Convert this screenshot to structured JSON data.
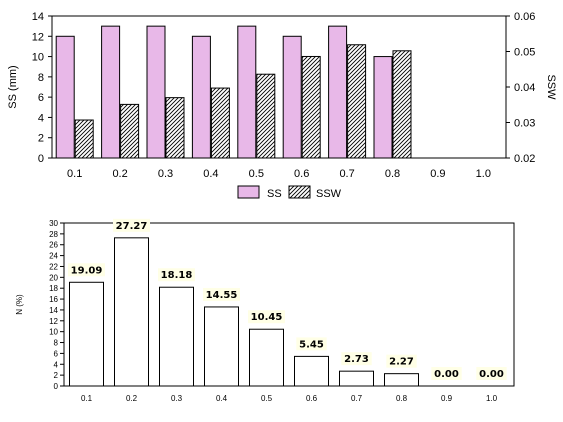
{
  "chart_data": [
    {
      "type": "bar",
      "categories": [
        "0.1",
        "0.2",
        "0.3",
        "0.4",
        "0.5",
        "0.6",
        "0.7",
        "0.8",
        "0.9",
        "1.0"
      ],
      "series": [
        {
          "name": "SS",
          "axis": "left",
          "color": "#e8b8e8",
          "values": [
            12,
            13,
            13,
            12,
            13,
            12,
            13,
            10,
            null,
            null
          ]
        },
        {
          "name": "SSW",
          "axis": "right",
          "pattern": "diagonal-hatch",
          "values": [
            0.0307,
            0.0351,
            0.037,
            0.0397,
            0.0436,
            0.0486,
            0.0519,
            0.0502,
            null,
            null
          ]
        }
      ],
      "ylabel": "SS (mm)",
      "ylim": [
        0,
        14
      ],
      "yticks": [
        "0",
        "2",
        "4",
        "6",
        "8",
        "10",
        "12",
        "14"
      ],
      "y2label": "SSW",
      "y2lim": [
        0.02,
        0.06
      ],
      "y2ticks": [
        "0.02",
        "0.03",
        "0.04",
        "0.05",
        "0.06"
      ],
      "legend": [
        "SS",
        "SSW"
      ],
      "legend_position": "bottom",
      "grid": false
    },
    {
      "type": "bar",
      "categories": [
        "0.1",
        "0.2",
        "0.3",
        "0.4",
        "0.5",
        "0.6",
        "0.7",
        "0.8",
        "0.9",
        "1.0"
      ],
      "values": [
        19.09,
        27.27,
        18.18,
        14.55,
        10.45,
        5.45,
        2.73,
        2.27,
        0.0,
        0.0
      ],
      "data_labels": [
        "19.09",
        "27.27",
        "18.18",
        "14.55",
        "10.45",
        "5.45",
        "2.73",
        "2.27",
        "0.00",
        "0.00"
      ],
      "ylabel": "N (%)",
      "ylim": [
        0,
        30
      ],
      "yticks": [
        "0",
        "2",
        "4",
        "6",
        "8",
        "10",
        "12",
        "14",
        "16",
        "18",
        "20",
        "22",
        "24",
        "26",
        "28",
        "30"
      ],
      "color": "#ffffff",
      "grid": false
    }
  ]
}
